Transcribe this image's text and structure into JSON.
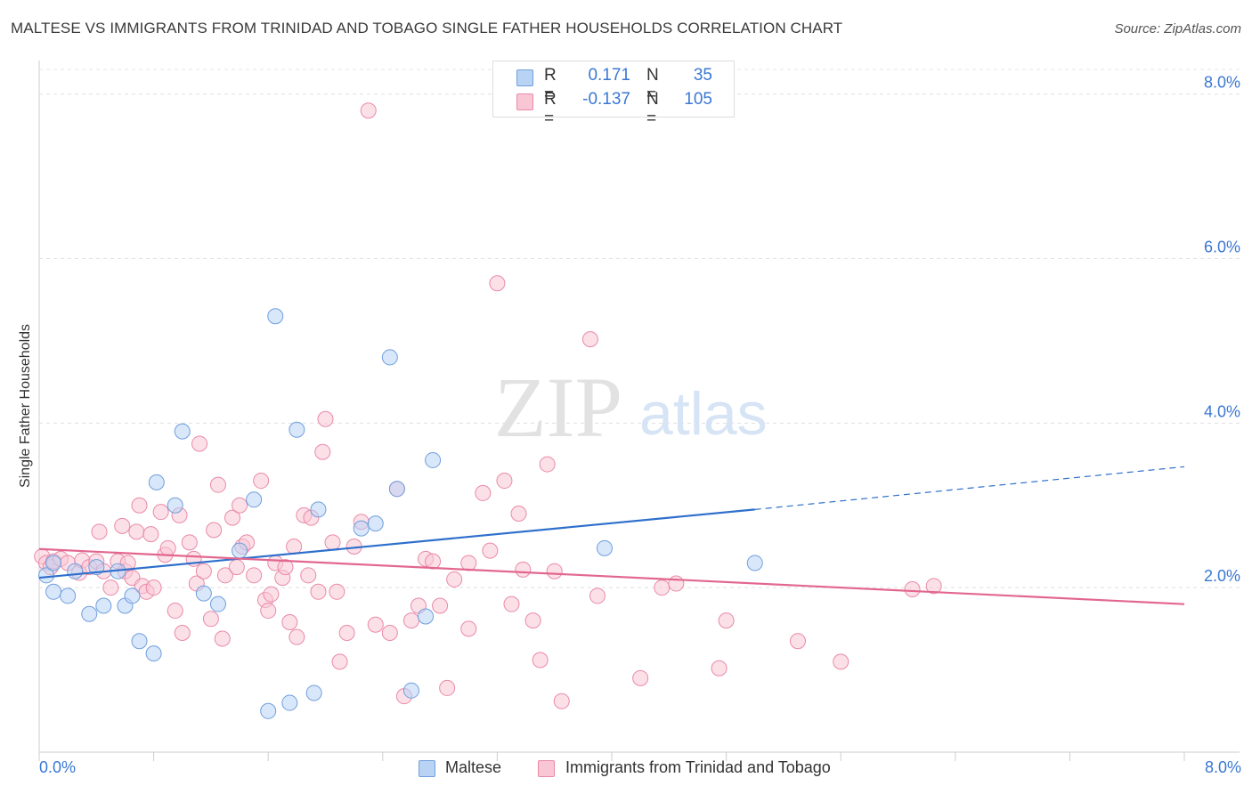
{
  "header": {
    "title": "MALTESE VS IMMIGRANTS FROM TRINIDAD AND TOBAGO SINGLE FATHER HOUSEHOLDS CORRELATION CHART",
    "source": "Source: ZipAtlas.com"
  },
  "legend": {
    "r_label": "R =",
    "n_label": "N =",
    "series": [
      {
        "r": "0.171",
        "n": "35",
        "swatch_fill": "#b9d3f5",
        "swatch_stroke": "#6f9fdc"
      },
      {
        "r": "-0.137",
        "n": "105",
        "swatch_fill": "#f9c6d5",
        "swatch_stroke": "#e98aa8"
      }
    ]
  },
  "bottom_legend": [
    "Maltese",
    "Immigrants from Trinidad and Tobago"
  ],
  "x_axis_labels": {
    "left": "0.0%",
    "right": "8.0%"
  },
  "watermark": {
    "zip": "ZIP",
    "atlas": "atlas"
  },
  "chart_data": {
    "type": "scatter",
    "title": "MALTESE VS IMMIGRANTS FROM TRINIDAD AND TOBAGO SINGLE FATHER HOUSEHOLDS CORRELATION CHART",
    "xlabel": "",
    "ylabel": "Single Father Households",
    "xlim": [
      0,
      8
    ],
    "ylim": [
      0,
      8.3
    ],
    "y_ticks": [
      {
        "value": 2,
        "label": "2.0%"
      },
      {
        "value": 4,
        "label": "4.0%"
      },
      {
        "value": 6,
        "label": "6.0%"
      },
      {
        "value": 8,
        "label": "8.0%"
      }
    ],
    "grid": "horizontal dashed",
    "legend_position": "top-center",
    "series": [
      {
        "name": "Maltese",
        "color": "#6f9fdc",
        "fill": "#b9d3f5",
        "line_color": "#2e6fcc",
        "trend": {
          "x0": 0.0,
          "y0": 2.12,
          "x1": 5.0,
          "y1": 2.95,
          "dash_to_x": 8.0,
          "dash_to_y": 3.47
        },
        "points": [
          [
            0.05,
            2.15
          ],
          [
            0.1,
            2.3
          ],
          [
            0.1,
            1.95
          ],
          [
            0.2,
            1.9
          ],
          [
            0.25,
            2.2
          ],
          [
            0.35,
            1.68
          ],
          [
            0.4,
            2.25
          ],
          [
            0.45,
            1.78
          ],
          [
            0.55,
            2.2
          ],
          [
            0.6,
            1.78
          ],
          [
            0.65,
            1.9
          ],
          [
            0.7,
            1.35
          ],
          [
            0.8,
            1.2
          ],
          [
            0.82,
            3.28
          ],
          [
            0.95,
            3.0
          ],
          [
            1.0,
            3.9
          ],
          [
            1.15,
            1.93
          ],
          [
            1.25,
            1.8
          ],
          [
            1.4,
            2.45
          ],
          [
            1.5,
            3.07
          ],
          [
            1.6,
            0.5
          ],
          [
            1.65,
            5.3
          ],
          [
            1.75,
            0.6
          ],
          [
            1.8,
            3.92
          ],
          [
            1.92,
            0.72
          ],
          [
            1.95,
            2.95
          ],
          [
            2.25,
            2.72
          ],
          [
            2.35,
            2.78
          ],
          [
            2.45,
            4.8
          ],
          [
            2.5,
            3.2
          ],
          [
            2.6,
            0.75
          ],
          [
            2.7,
            1.65
          ],
          [
            2.75,
            3.55
          ],
          [
            3.95,
            2.48
          ],
          [
            5.0,
            2.3
          ]
        ]
      },
      {
        "name": "Immigrants from Trinidad and Tobago",
        "color": "#e98aa8",
        "fill": "#f9c6d5",
        "line_color": "#e2678f",
        "trend": {
          "x0": 0.0,
          "y0": 2.47,
          "x1": 8.0,
          "y1": 1.8
        },
        "points": [
          [
            0.02,
            2.38
          ],
          [
            0.05,
            2.3
          ],
          [
            0.08,
            2.25
          ],
          [
            0.1,
            2.32
          ],
          [
            0.15,
            2.35
          ],
          [
            0.2,
            2.3
          ],
          [
            0.28,
            2.18
          ],
          [
            0.3,
            2.33
          ],
          [
            0.35,
            2.25
          ],
          [
            0.4,
            2.32
          ],
          [
            0.42,
            2.68
          ],
          [
            0.45,
            2.2
          ],
          [
            0.5,
            2.0
          ],
          [
            0.55,
            2.32
          ],
          [
            0.58,
            2.75
          ],
          [
            0.6,
            2.2
          ],
          [
            0.62,
            2.3
          ],
          [
            0.65,
            2.12
          ],
          [
            0.68,
            2.68
          ],
          [
            0.7,
            3.0
          ],
          [
            0.72,
            2.02
          ],
          [
            0.75,
            1.95
          ],
          [
            0.78,
            2.65
          ],
          [
            0.8,
            2.0
          ],
          [
            0.85,
            2.92
          ],
          [
            0.88,
            2.4
          ],
          [
            0.9,
            2.48
          ],
          [
            0.95,
            1.72
          ],
          [
            0.98,
            2.88
          ],
          [
            1.0,
            1.45
          ],
          [
            1.05,
            2.55
          ],
          [
            1.08,
            2.35
          ],
          [
            1.1,
            2.05
          ],
          [
            1.12,
            3.75
          ],
          [
            1.15,
            2.2
          ],
          [
            1.2,
            1.62
          ],
          [
            1.22,
            2.7
          ],
          [
            1.25,
            3.25
          ],
          [
            1.28,
            1.38
          ],
          [
            1.3,
            2.15
          ],
          [
            1.35,
            2.85
          ],
          [
            1.38,
            2.25
          ],
          [
            1.4,
            3.0
          ],
          [
            1.42,
            2.5
          ],
          [
            1.45,
            2.55
          ],
          [
            1.5,
            2.15
          ],
          [
            1.55,
            3.3
          ],
          [
            1.58,
            1.85
          ],
          [
            1.6,
            1.72
          ],
          [
            1.62,
            1.92
          ],
          [
            1.65,
            2.3
          ],
          [
            1.7,
            2.12
          ],
          [
            1.72,
            2.25
          ],
          [
            1.75,
            1.58
          ],
          [
            1.78,
            2.5
          ],
          [
            1.8,
            1.4
          ],
          [
            1.85,
            2.88
          ],
          [
            1.88,
            2.15
          ],
          [
            1.9,
            2.85
          ],
          [
            1.95,
            1.95
          ],
          [
            1.98,
            3.65
          ],
          [
            2.0,
            4.05
          ],
          [
            2.05,
            2.55
          ],
          [
            2.08,
            1.95
          ],
          [
            2.1,
            1.1
          ],
          [
            2.15,
            1.45
          ],
          [
            2.2,
            2.5
          ],
          [
            2.25,
            2.8
          ],
          [
            2.3,
            7.8
          ],
          [
            2.35,
            1.55
          ],
          [
            2.45,
            1.45
          ],
          [
            2.5,
            3.2
          ],
          [
            2.55,
            0.68
          ],
          [
            2.6,
            1.6
          ],
          [
            2.65,
            1.78
          ],
          [
            2.7,
            2.35
          ],
          [
            2.75,
            2.32
          ],
          [
            2.8,
            1.78
          ],
          [
            2.85,
            0.78
          ],
          [
            2.9,
            2.1
          ],
          [
            3.0,
            1.5
          ],
          [
            3.1,
            3.15
          ],
          [
            3.15,
            2.45
          ],
          [
            3.2,
            5.7
          ],
          [
            3.25,
            3.3
          ],
          [
            3.3,
            1.8
          ],
          [
            3.35,
            2.9
          ],
          [
            3.38,
            2.22
          ],
          [
            3.45,
            1.6
          ],
          [
            3.5,
            1.12
          ],
          [
            3.55,
            3.5
          ],
          [
            3.6,
            2.2
          ],
          [
            3.65,
            0.62
          ],
          [
            3.85,
            5.02
          ],
          [
            3.9,
            1.9
          ],
          [
            4.2,
            0.9
          ],
          [
            4.35,
            2.0
          ],
          [
            4.45,
            2.05
          ],
          [
            4.75,
            1.02
          ],
          [
            4.8,
            1.6
          ],
          [
            5.3,
            1.35
          ],
          [
            5.6,
            1.1
          ],
          [
            6.1,
            1.98
          ],
          [
            6.25,
            2.02
          ],
          [
            3.0,
            2.3
          ]
        ]
      }
    ]
  }
}
